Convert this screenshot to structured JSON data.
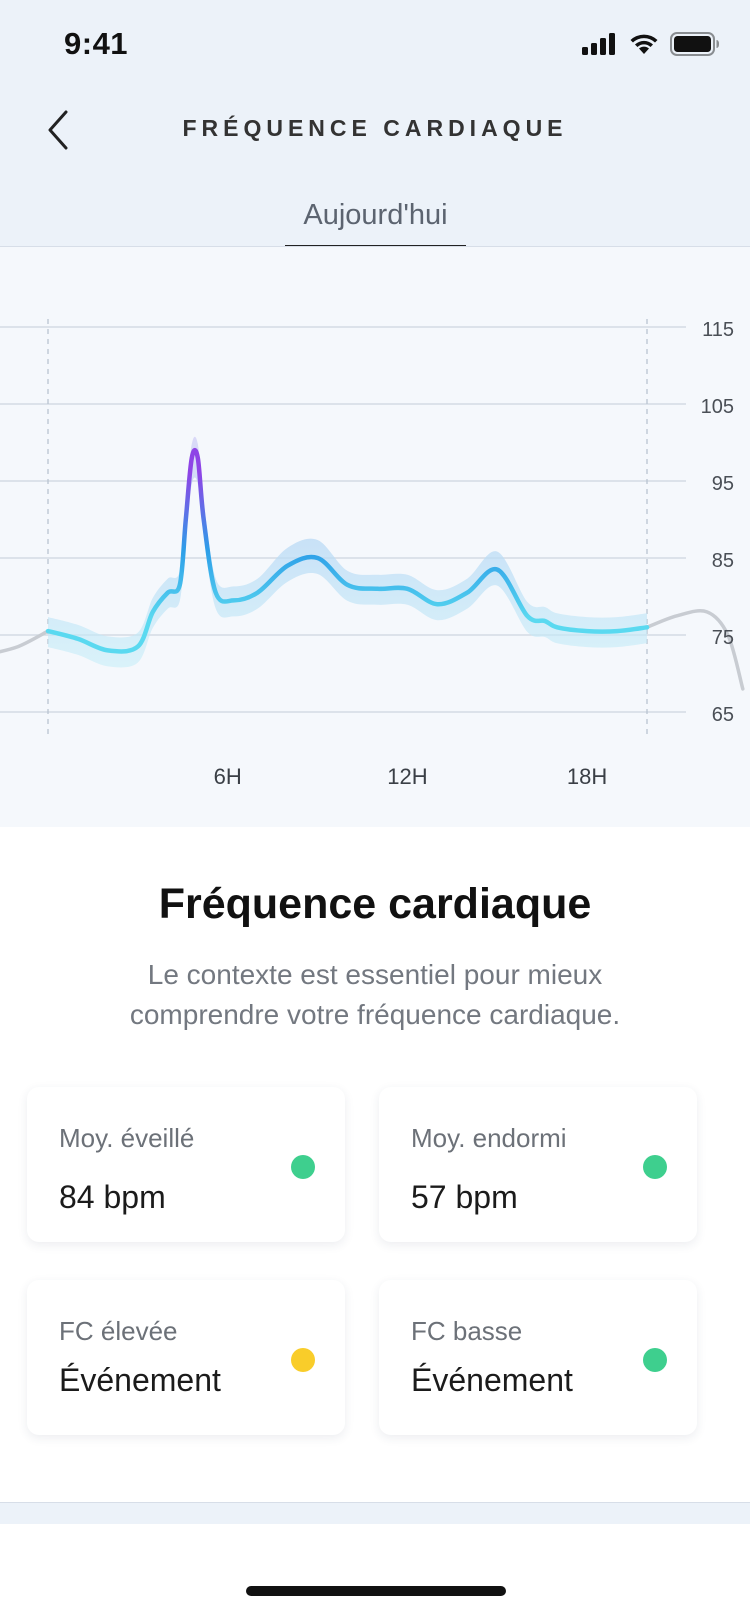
{
  "status_bar": {
    "time": "9:41"
  },
  "header": {
    "title": "FRÉQUENCE CARDIAQUE",
    "back_icon": "chevron-left-icon"
  },
  "tabs": [
    {
      "label": "Aujourd'hui",
      "active": true
    }
  ],
  "chart_data": {
    "type": "line",
    "title": "",
    "xlabel": "",
    "ylabel": "",
    "x_ticks": [
      "6H",
      "12H",
      "18H"
    ],
    "y_ticks": [
      115,
      105,
      95,
      85,
      75,
      65
    ],
    "ylim": [
      65,
      115
    ],
    "xlim_hours": [
      -1.5,
      21.5
    ],
    "grid": true,
    "day_markers_hours": [
      0,
      20
    ],
    "colors": {
      "line_low": "#5ad9f0",
      "line_mid": "#2d9ee8",
      "line_peak": "#8e44e6",
      "band": "#b8d8f5",
      "outside": "#c8ccd2"
    },
    "series": [
      {
        "x": [
          0,
          1,
          2,
          3,
          3.5,
          4,
          4.4,
          4.6,
          4.8,
          5.0,
          5.2,
          5.6,
          6.2,
          7,
          8,
          9,
          10,
          11,
          12,
          13,
          14,
          15,
          16,
          16.6,
          17,
          18,
          19,
          20
        ],
        "y": [
          75.5,
          74.5,
          73,
          73.5,
          78,
          80.5,
          81.5,
          90,
          98,
          98,
          90,
          80.5,
          79.5,
          80.5,
          84,
          85,
          81.5,
          81,
          81,
          79,
          80.5,
          83.5,
          77.5,
          76.8,
          76,
          75.5,
          75.5,
          76
        ]
      }
    ]
  },
  "info": {
    "title": "Fréquence cardiaque",
    "description": "Le contexte est essentiel pour mieux comprendre votre fréquence cardiaque."
  },
  "cards": [
    {
      "label": "Moy. éveillé",
      "value": "84 bpm",
      "status_color": "#3ecf8e"
    },
    {
      "label": "Moy. endormi",
      "value": "57 bpm",
      "status_color": "#3ecf8e"
    },
    {
      "label": "FC élevée",
      "value": "Événement",
      "status_color": "#f9cd2a"
    },
    {
      "label": "FC basse",
      "value": "Événement",
      "status_color": "#3ecf8e"
    }
  ]
}
